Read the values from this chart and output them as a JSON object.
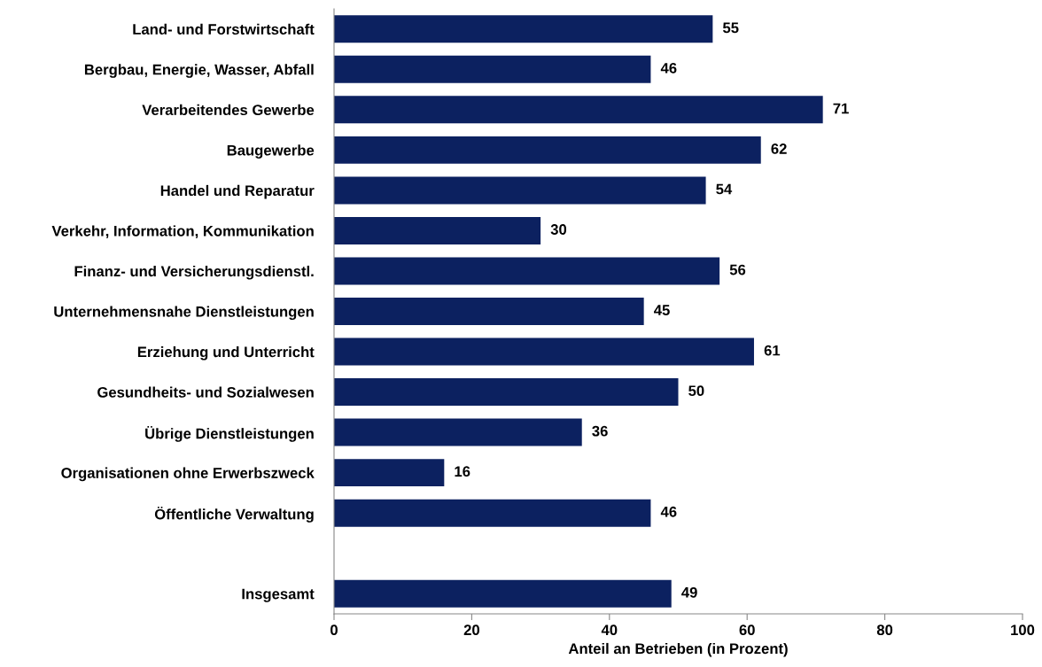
{
  "chart_data": {
    "type": "bar",
    "orientation": "horizontal",
    "xlabel": "Anteil an Betrieben (in Prozent)",
    "categories": [
      "Land- und Forstwirtschaft",
      "Bergbau, Energie, Wasser, Abfall",
      "Verarbeitendes Gewerbe",
      "Baugewerbe",
      "Handel und Reparatur",
      "Verkehr, Information, Kommunikation",
      "Finanz- und Versicherungsdienstl.",
      "Unternehmensnahe Dienstleistungen",
      "Erziehung und Unterricht",
      "Gesundheits- und Sozialwesen",
      "Übrige Dienstleistungen",
      "Organisationen ohne Erwerbszweck",
      "Öffentliche Verwaltung",
      null,
      "Insgesamt"
    ],
    "values": [
      55,
      46,
      71,
      62,
      54,
      30,
      56,
      45,
      61,
      50,
      36,
      16,
      46,
      null,
      49
    ],
    "color": "#0c2160",
    "xlim": [
      0,
      100
    ],
    "xticks": [
      0,
      20,
      40,
      60,
      80,
      100
    ],
    "data_labels": true,
    "grid": false,
    "legend": false
  }
}
